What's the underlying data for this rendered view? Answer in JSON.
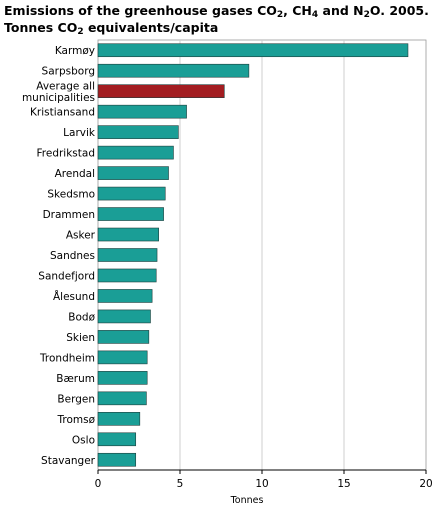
{
  "title": {
    "line1_part1": "Emissions of the greenhouse gases CO",
    "sub1": "2",
    "line1_part2": ", CH",
    "sub2": "4",
    "line1_part3": " and N",
    "sub3": "2",
    "line1_part4": "O. 2005.",
    "line2_part1": "Tonnes CO",
    "sub4": "2",
    "line2_part2": " equivalents/capita"
  },
  "chart_data": {
    "type": "bar",
    "orientation": "horizontal",
    "categories": [
      [
        "Karmøy"
      ],
      [
        "Sarpsborg"
      ],
      [
        "Average all",
        "municipalities"
      ],
      [
        "Kristiansand"
      ],
      [
        "Larvik"
      ],
      [
        "Fredrikstad"
      ],
      [
        "Arendal"
      ],
      [
        "Skedsmo"
      ],
      [
        "Drammen"
      ],
      [
        "Asker"
      ],
      [
        "Sandnes"
      ],
      [
        "Sandefjord"
      ],
      [
        "Ålesund"
      ],
      [
        "Bodø"
      ],
      [
        "Skien"
      ],
      [
        "Trondheim"
      ],
      [
        "Bærum"
      ],
      [
        "Bergen"
      ],
      [
        "Tromsø"
      ],
      [
        "Oslo"
      ],
      [
        "Stavanger"
      ]
    ],
    "values": [
      18.9,
      9.2,
      7.7,
      5.4,
      4.9,
      4.6,
      4.3,
      4.1,
      4.0,
      3.7,
      3.6,
      3.55,
      3.3,
      3.2,
      3.1,
      3.0,
      3.0,
      2.95,
      2.55,
      2.3,
      2.3
    ],
    "highlight_index": 2,
    "xlabel": "Tonnes",
    "xlim": [
      0,
      20
    ],
    "xticks": [
      0,
      5,
      10,
      15,
      20
    ],
    "grid": "vertical",
    "bar_color": "#1a9e96",
    "highlight_color": "#a31d21",
    "grid_color": "#cfcfcf"
  }
}
